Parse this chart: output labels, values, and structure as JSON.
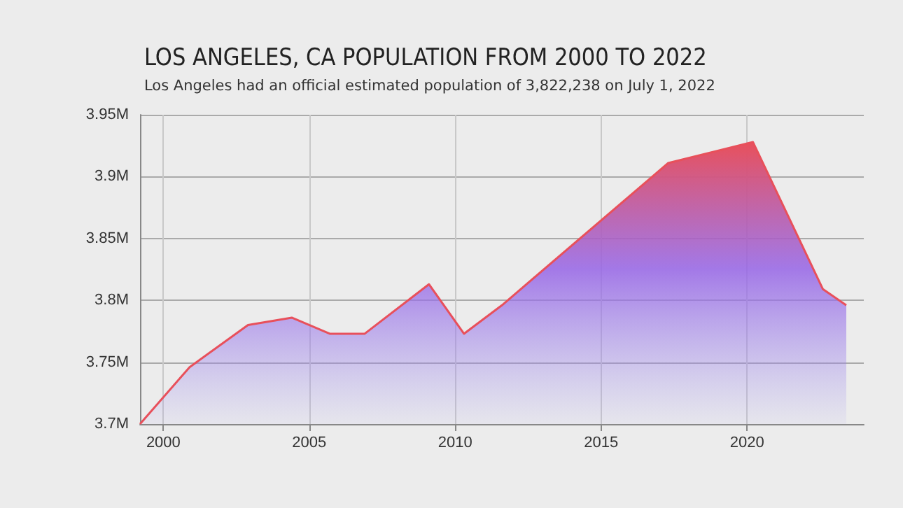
{
  "chart_data": {
    "type": "area",
    "title": "LOS ANGELES, CA POPULATION FROM 2000 TO 2022",
    "subtitle": "Los Angeles had an official estimated population of 3,822,238 on July 1, 2022",
    "x": [
      1999.2,
      2000.9,
      2002.9,
      2004.4,
      2005.7,
      2006.9,
      2009.1,
      2010.3,
      2011.6,
      2017.3,
      2020.2,
      2022.6,
      2023.4
    ],
    "series": [
      {
        "color": "#e8505b",
        "values": [
          3.7,
          3.746,
          3.78,
          3.786,
          3.773,
          3.773,
          3.813,
          3.773,
          3.796,
          3.911,
          3.928,
          3.809,
          3.796
        ]
      }
    ],
    "xlim": [
      1999.2,
      2024
    ],
    "xticks": [
      2000,
      2005,
      2010,
      2015,
      2020
    ],
    "ylim": [
      3.7,
      3.95
    ],
    "yticks": [
      {
        "value": 3.7,
        "label": "3.7M"
      },
      {
        "value": 3.75,
        "label": "3.75M"
      },
      {
        "value": 3.8,
        "label": "3.8M"
      },
      {
        "value": 3.85,
        "label": "3.85M"
      },
      {
        "value": 3.9,
        "label": "3.9M"
      },
      {
        "value": 3.95,
        "label": "3.95M"
      }
    ],
    "grid": true,
    "marker": "none",
    "line_style": "solid"
  }
}
